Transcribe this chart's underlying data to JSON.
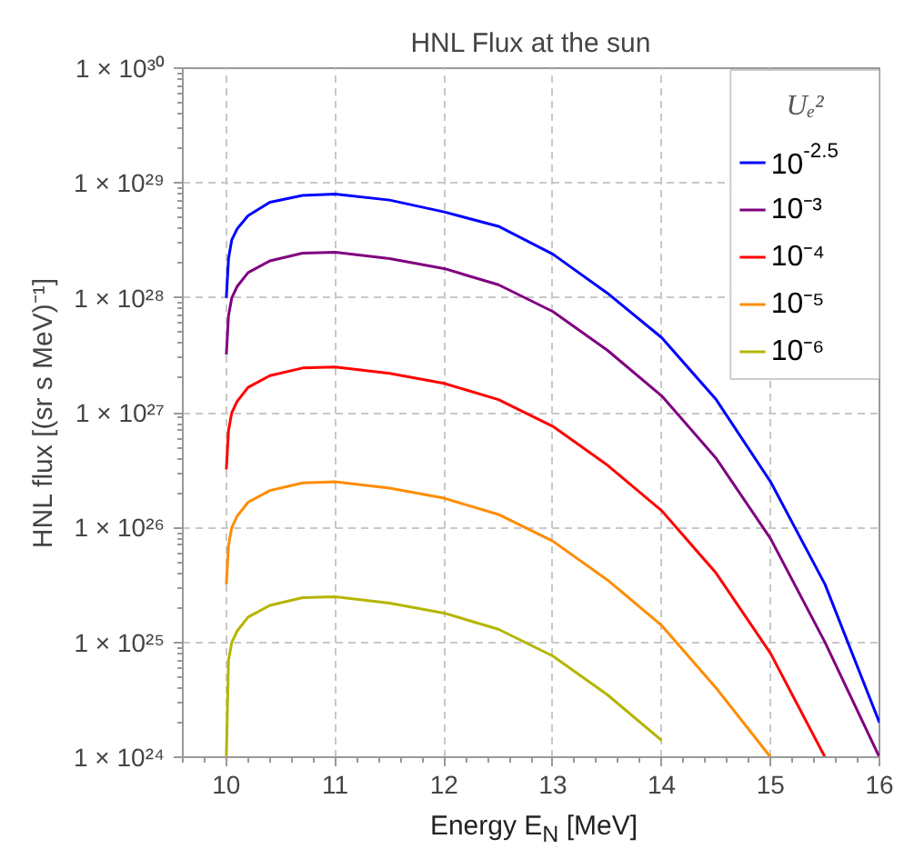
{
  "chart_data": {
    "type": "line",
    "title": "HNL Flux at the sun",
    "xlabel": "Energy E$_{N}$ [MeV]",
    "ylabel": "HNL flux [(sr s MeV)⁻¹]",
    "legend_title": "Uₑ²",
    "x": [
      10,
      10.02,
      10.05,
      10.1,
      10.2,
      10.4,
      10.7,
      11,
      11.5,
      12,
      12.5,
      13,
      13.5,
      14,
      14.5,
      15,
      15.5,
      16
    ],
    "series": [
      {
        "name": "10$^{-2.5}$",
        "color": "#0000ff",
        "values": [
          1e+28,
          2.2e+28,
          3.2e+28,
          4e+28,
          5.2e+28,
          6.8e+28,
          7.8e+28,
          8e+28,
          7.1e+28,
          5.6e+28,
          4.2e+28,
          2.4e+28,
          1.1e+28,
          4.5e+27,
          1.3e+27,
          2.5e+26,
          3.2e+25,
          2e+24
        ]
      },
      {
        "name": "10⁻³",
        "color": "#800080",
        "values": [
          3.2e+27,
          7e+27,
          1e+28,
          1.26e+28,
          1.66e+28,
          2.1e+28,
          2.45e+28,
          2.5e+28,
          2.2e+28,
          1.8e+28,
          1.3e+28,
          7.6e+27,
          3.5e+27,
          1.4e+27,
          4e+26,
          8e+25,
          1e+25,
          1e+24
        ]
      },
      {
        "name": "10⁻⁴",
        "color": "#ff0000",
        "values": [
          3.2e+26,
          7e+26,
          1e+27,
          1.26e+27,
          1.66e+27,
          2.1e+27,
          2.45e+27,
          2.5e+27,
          2.2e+27,
          1.8e+27,
          1.3e+27,
          7.6e+26,
          3.5e+26,
          1.4e+26,
          4e+25,
          8e+24,
          1e+24,
          null
        ]
      },
      {
        "name": "10⁻⁵",
        "color": "#ff8c00",
        "values": [
          3.2e+25,
          7e+25,
          1e+26,
          1.26e+26,
          1.66e+26,
          2.1e+26,
          2.45e+26,
          2.5e+26,
          2.2e+26,
          1.8e+26,
          1.3e+26,
          7.6e+25,
          3.5e+25,
          1.4e+25,
          4e+24,
          1e+24,
          null,
          null
        ]
      },
      {
        "name": "10⁻⁶",
        "color": "#b5b500",
        "values": [
          1e+24,
          7e+24,
          1e+25,
          1.26e+25,
          1.66e+25,
          2.1e+25,
          2.45e+25,
          2.5e+25,
          2.2e+25,
          1.8e+25,
          1.3e+25,
          7.6e+24,
          3.5e+24,
          1.4e+24,
          null,
          null,
          null,
          null
        ]
      }
    ],
    "xlim": [
      9.6,
      16
    ],
    "xticks": [
      10,
      11,
      12,
      13,
      14,
      15,
      16
    ],
    "ylim": [
      1e+24,
      1e+30
    ],
    "yticks": [
      {
        "value": 1e+24,
        "label": "1 × 10²⁴"
      },
      {
        "value": 1e+25,
        "label": "1 × 10²⁵"
      },
      {
        "value": 1e+26,
        "label": "1 × 10²⁶"
      },
      {
        "value": 1e+27,
        "label": "1 × 10²⁷"
      },
      {
        "value": 1e+28,
        "label": "1 × 10²⁸"
      },
      {
        "value": 1e+29,
        "label": "1 × 10²⁹"
      },
      {
        "value": 1e+30,
        "label": "1 × 10³⁰"
      }
    ],
    "log": "y",
    "grid": true,
    "legend": "top right",
    "marker": "none",
    "line_style": "solid"
  }
}
